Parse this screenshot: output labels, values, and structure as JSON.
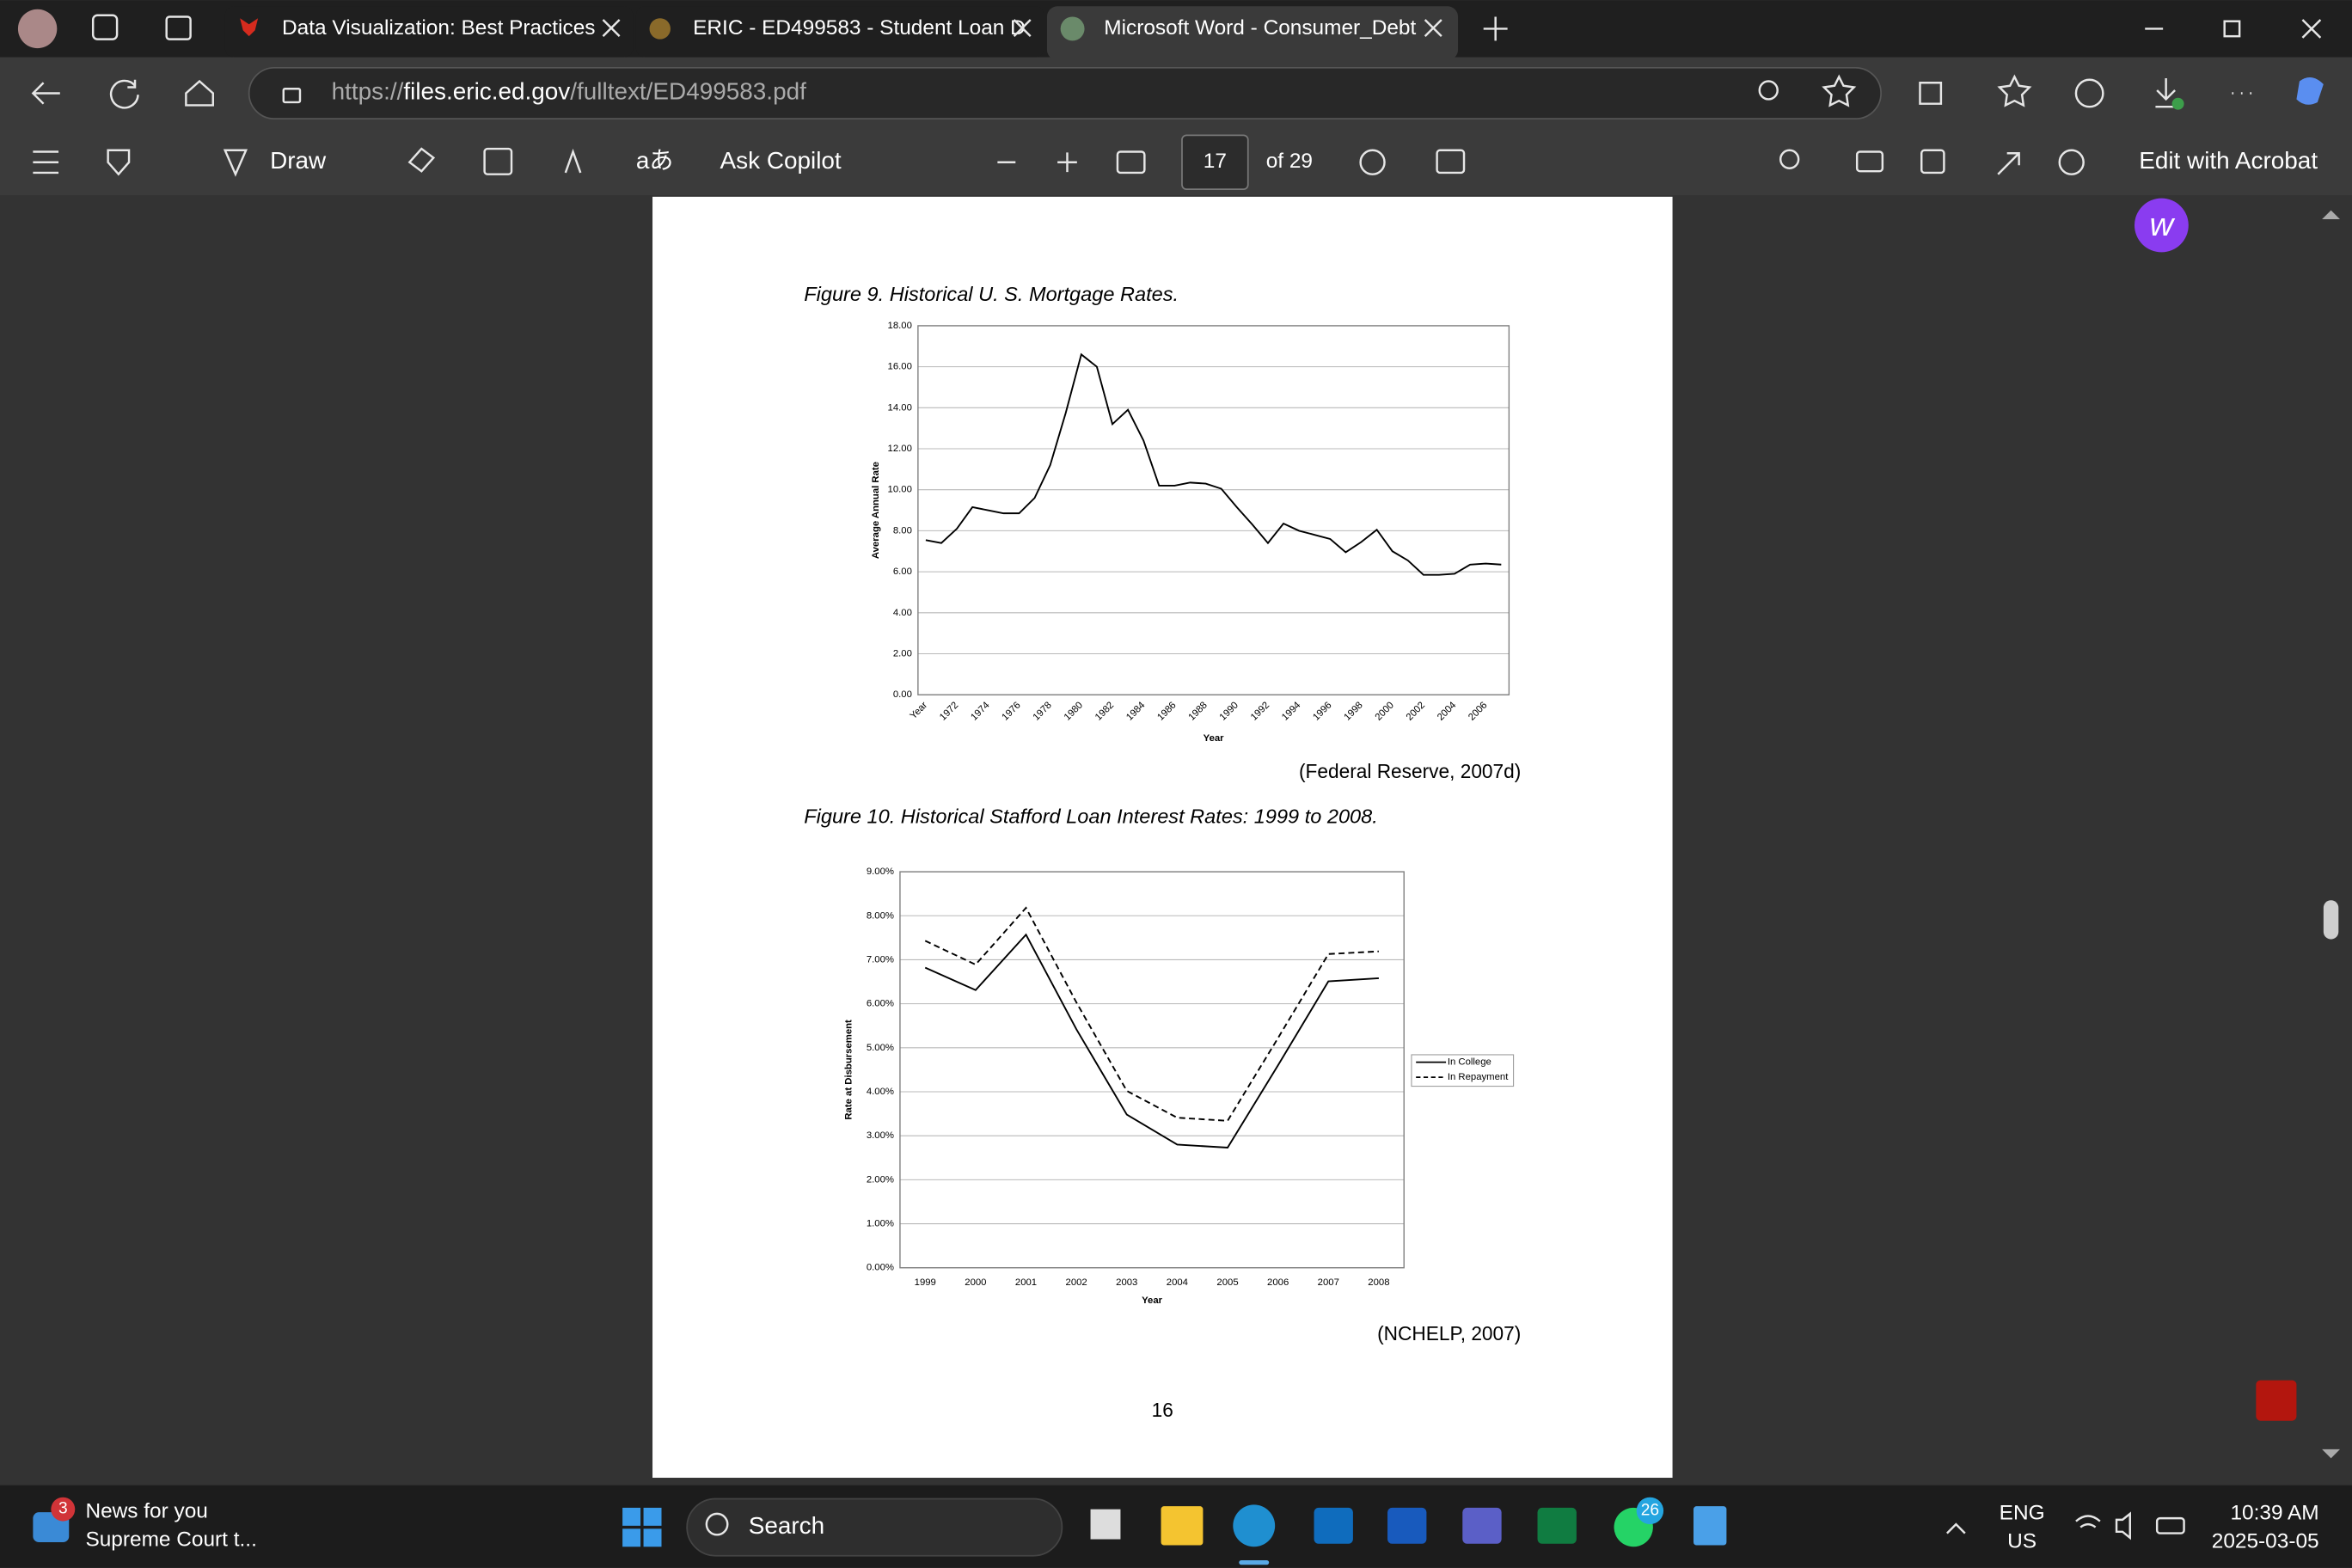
{
  "browser": {
    "tabs": [
      "Data Visualization: Best Practices",
      "ERIC - ED499583 - Student Loan D",
      "Microsoft Word - Consumer_Debt"
    ],
    "url": {
      "scheme": "https://",
      "host": "files.eric.ed.gov",
      "path": "/fulltext/ED499583.pdf"
    }
  },
  "pdf_toolbar": {
    "draw": "Draw",
    "translate": "aあ",
    "ask_copilot": "Ask Copilot",
    "page": "17",
    "page_count": "of 29",
    "edit": "Edit with Acrobat"
  },
  "pdf": {
    "page_number": "16",
    "figures": [
      {
        "caption": "Figure 9. Historical U. S. Mortgage Rates.",
        "source": "(Federal Reserve, 2007d)",
        "chart": {
          "type": "line",
          "x_label": "Year",
          "y_label": "Average Annual Rate",
          "categories": [
            "Year",
            null,
            "1972",
            null,
            "1974",
            null,
            "1976",
            null,
            "1978",
            null,
            "1980",
            null,
            "1982",
            null,
            "1984",
            null,
            "1986",
            null,
            "1988",
            null,
            "1990",
            null,
            "1992",
            null,
            "1994",
            null,
            "1996",
            null,
            "1998",
            null,
            "2000",
            null,
            "2002",
            null,
            "2004",
            null,
            "2006",
            null
          ],
          "values": [
            7.54,
            7.4,
            8.1,
            9.15,
            9.0,
            8.85,
            8.85,
            9.6,
            11.2,
            13.75,
            16.6,
            16.0,
            13.2,
            13.9,
            12.4,
            10.2,
            10.2,
            10.35,
            10.3,
            10.05,
            9.15,
            8.3,
            7.4,
            8.35,
            8.0,
            7.8,
            7.6,
            6.95,
            7.45,
            8.05,
            7.0,
            6.55,
            5.85,
            5.85,
            5.9,
            6.35,
            6.4,
            6.35
          ],
          "color": "#000000",
          "ylim": [
            0,
            18
          ],
          "yticks": [
            {
              "value": 0,
              "label": "0.00"
            },
            {
              "value": 2,
              "label": "2.00"
            },
            {
              "value": 4,
              "label": "4.00"
            },
            {
              "value": 6,
              "label": "6.00"
            },
            {
              "value": 8,
              "label": "8.00"
            },
            {
              "value": 10,
              "label": "10.00"
            },
            {
              "value": 12,
              "label": "12.00"
            },
            {
              "value": 14,
              "label": "14.00"
            },
            {
              "value": 16,
              "label": "16.00"
            },
            {
              "value": 18,
              "label": "18.00"
            }
          ],
          "grid": true,
          "xtick_rotation": 45
        }
      },
      {
        "caption": "Figure 10. Historical Stafford Loan Interest Rates: 1999 to 2008.",
        "source": "(NCHELP, 2007)",
        "chart": {
          "type": "line",
          "x_label": "Year",
          "y_label": "Rate at Disbursement",
          "categories": [
            "1999",
            "2000",
            "2001",
            "2002",
            "2003",
            "2004",
            "2005",
            "2006",
            "2007",
            "2008"
          ],
          "series": [
            {
              "name": "In College",
              "color": "#000000",
              "line_style": "solid",
              "values": [
                6.82,
                6.31,
                7.57,
                5.42,
                3.48,
                2.8,
                2.73,
                4.6,
                6.51,
                6.58
              ]
            },
            {
              "name": "In Repayment",
              "color": "#000000",
              "line_style": "dashed",
              "values": [
                7.43,
                6.89,
                8.18,
                6.03,
                4.02,
                3.41,
                3.34,
                5.22,
                7.13,
                7.19
              ]
            }
          ],
          "ylim": [
            0,
            9
          ],
          "yticks": [
            {
              "value": 0,
              "label": "0.00%"
            },
            {
              "value": 1,
              "label": "1.00%"
            },
            {
              "value": 2,
              "label": "2.00%"
            },
            {
              "value": 3,
              "label": "3.00%"
            },
            {
              "value": 4,
              "label": "4.00%"
            },
            {
              "value": 5,
              "label": "5.00%"
            },
            {
              "value": 6,
              "label": "6.00%"
            },
            {
              "value": 7,
              "label": "7.00%"
            },
            {
              "value": 8,
              "label": "8.00%"
            },
            {
              "value": 9,
              "label": "9.00%"
            }
          ],
          "grid": true,
          "legend": "right"
        }
      }
    ]
  },
  "taskbar": {
    "news_badge": "3",
    "news_title": "News for you",
    "news_headline": "Supreme Court t...",
    "search": "Search",
    "whatsapp_badge": "26",
    "language": "ENG",
    "layout": "US",
    "time": "10:39 AM",
    "date": "2025-03-05"
  }
}
